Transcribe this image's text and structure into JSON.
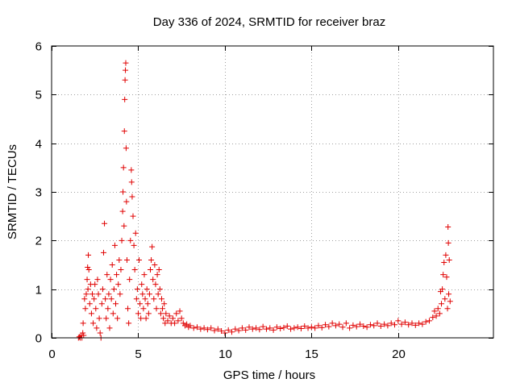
{
  "chart_data": {
    "type": "scatter",
    "title": "Day 336 of 2024, SRMTID for receiver braz",
    "xlabel": "GPS time / hours",
    "ylabel": "SRMTID / TECUs",
    "xlim": [
      0,
      25.5
    ],
    "ylim": [
      0,
      6
    ],
    "xticks": [
      "0",
      "5",
      "10",
      "15",
      "20"
    ],
    "yticks": [
      "0",
      "1",
      "2",
      "3",
      "4",
      "5",
      "6"
    ],
    "grid": true,
    "marker": "+",
    "marker_color": "#e00000",
    "series": [
      {
        "name": "SRMTID",
        "points": [
          [
            1.55,
            0.0
          ],
          [
            1.6,
            0.02
          ],
          [
            1.65,
            0.0
          ],
          [
            1.7,
            0.05
          ],
          [
            1.75,
            0.0
          ],
          [
            1.8,
            0.1
          ],
          [
            1.82,
            0.3
          ],
          [
            1.85,
            0.05
          ],
          [
            1.9,
            0.8
          ],
          [
            1.95,
            0.6
          ],
          [
            2.0,
            0.9
          ],
          [
            2.05,
            1.2
          ],
          [
            2.08,
            1.45
          ],
          [
            2.1,
            1.0
          ],
          [
            2.12,
            1.7
          ],
          [
            2.15,
            1.4
          ],
          [
            2.2,
            0.7
          ],
          [
            2.25,
            1.1
          ],
          [
            2.3,
            0.5
          ],
          [
            2.35,
            0.9
          ],
          [
            2.4,
            0.3
          ],
          [
            2.45,
            0.8
          ],
          [
            2.5,
            1.1
          ],
          [
            2.55,
            0.6
          ],
          [
            2.6,
            0.2
          ],
          [
            2.65,
            1.2
          ],
          [
            2.7,
            0.9
          ],
          [
            2.75,
            0.4
          ],
          [
            2.8,
            0.1
          ],
          [
            2.85,
            0.0
          ],
          [
            2.9,
            0.7
          ],
          [
            2.95,
            1.0
          ],
          [
            3.0,
            1.75
          ],
          [
            3.05,
            2.35
          ],
          [
            3.1,
            0.8
          ],
          [
            3.15,
            0.4
          ],
          [
            3.2,
            1.3
          ],
          [
            3.25,
            0.6
          ],
          [
            3.3,
            0.9
          ],
          [
            3.35,
            0.2
          ],
          [
            3.4,
            1.2
          ],
          [
            3.45,
            0.8
          ],
          [
            3.5,
            1.5
          ],
          [
            3.55,
            0.5
          ],
          [
            3.6,
            1.0
          ],
          [
            3.65,
            1.9
          ],
          [
            3.7,
            0.7
          ],
          [
            3.75,
            1.3
          ],
          [
            3.8,
            0.4
          ],
          [
            3.85,
            1.1
          ],
          [
            3.9,
            1.6
          ],
          [
            3.95,
            0.9
          ],
          [
            4.0,
            1.4
          ],
          [
            4.05,
            2.0
          ],
          [
            4.1,
            2.6
          ],
          [
            4.12,
            3.0
          ],
          [
            4.15,
            3.5
          ],
          [
            4.18,
            2.3
          ],
          [
            4.2,
            4.25
          ],
          [
            4.22,
            4.9
          ],
          [
            4.24,
            5.3
          ],
          [
            4.26,
            5.5
          ],
          [
            4.28,
            5.65
          ],
          [
            4.3,
            3.9
          ],
          [
            4.32,
            2.8
          ],
          [
            4.35,
            1.6
          ],
          [
            4.4,
            0.6
          ],
          [
            4.45,
            0.3
          ],
          [
            4.5,
            1.2
          ],
          [
            4.55,
            2.0
          ],
          [
            4.6,
            3.45
          ],
          [
            4.62,
            3.2
          ],
          [
            4.65,
            2.9
          ],
          [
            4.7,
            2.5
          ],
          [
            4.75,
            1.9
          ],
          [
            4.8,
            1.4
          ],
          [
            4.85,
            2.15
          ],
          [
            4.9,
            0.8
          ],
          [
            4.95,
            1.0
          ],
          [
            5.0,
            0.5
          ],
          [
            5.05,
            1.6
          ],
          [
            5.1,
            0.7
          ],
          [
            5.15,
            0.4
          ],
          [
            5.2,
            1.1
          ],
          [
            5.25,
            0.9
          ],
          [
            5.3,
            0.6
          ],
          [
            5.35,
            1.3
          ],
          [
            5.4,
            0.8
          ],
          [
            5.45,
            0.4
          ],
          [
            5.5,
            1.0
          ],
          [
            5.55,
            0.7
          ],
          [
            5.6,
            0.5
          ],
          [
            5.65,
            0.9
          ],
          [
            5.7,
            1.4
          ],
          [
            5.75,
            1.6
          ],
          [
            5.8,
            1.87
          ],
          [
            5.85,
            1.2
          ],
          [
            5.9,
            0.8
          ],
          [
            5.95,
            1.5
          ],
          [
            6.0,
            1.1
          ],
          [
            6.05,
            0.6
          ],
          [
            6.1,
            1.3
          ],
          [
            6.15,
            0.9
          ],
          [
            6.2,
            1.4
          ],
          [
            6.25,
            1.0
          ],
          [
            6.3,
            0.5
          ],
          [
            6.35,
            0.8
          ],
          [
            6.4,
            0.6
          ],
          [
            6.45,
            0.4
          ],
          [
            6.5,
            0.7
          ],
          [
            6.55,
            0.3
          ],
          [
            6.6,
            0.5
          ],
          [
            6.7,
            0.35
          ],
          [
            6.8,
            0.45
          ],
          [
            6.9,
            0.3
          ],
          [
            7.0,
            0.4
          ],
          [
            7.1,
            0.3
          ],
          [
            7.2,
            0.5
          ],
          [
            7.3,
            0.35
          ],
          [
            7.4,
            0.55
          ],
          [
            7.5,
            0.4
          ],
          [
            7.6,
            0.3
          ],
          [
            7.7,
            0.25
          ],
          [
            7.8,
            0.28
          ],
          [
            7.9,
            0.22
          ],
          [
            8.0,
            0.25
          ],
          [
            8.2,
            0.2
          ],
          [
            8.4,
            0.22
          ],
          [
            8.6,
            0.18
          ],
          [
            8.8,
            0.2
          ],
          [
            9.0,
            0.17
          ],
          [
            9.2,
            0.2
          ],
          [
            9.4,
            0.15
          ],
          [
            9.6,
            0.18
          ],
          [
            9.8,
            0.14
          ],
          [
            10.0,
            0.1
          ],
          [
            10.2,
            0.16
          ],
          [
            10.4,
            0.12
          ],
          [
            10.6,
            0.18
          ],
          [
            10.8,
            0.15
          ],
          [
            11.0,
            0.2
          ],
          [
            11.2,
            0.16
          ],
          [
            11.4,
            0.22
          ],
          [
            11.6,
            0.18
          ],
          [
            11.8,
            0.2
          ],
          [
            12.0,
            0.17
          ],
          [
            12.2,
            0.23
          ],
          [
            12.4,
            0.18
          ],
          [
            12.6,
            0.2
          ],
          [
            12.8,
            0.16
          ],
          [
            13.0,
            0.22
          ],
          [
            13.2,
            0.19
          ],
          [
            13.4,
            0.21
          ],
          [
            13.6,
            0.24
          ],
          [
            13.8,
            0.18
          ],
          [
            14.0,
            0.2
          ],
          [
            14.2,
            0.22
          ],
          [
            14.4,
            0.19
          ],
          [
            14.6,
            0.24
          ],
          [
            14.8,
            0.2
          ],
          [
            15.0,
            0.22
          ],
          [
            15.2,
            0.2
          ],
          [
            15.4,
            0.25
          ],
          [
            15.6,
            0.21
          ],
          [
            15.8,
            0.27
          ],
          [
            16.0,
            0.23
          ],
          [
            16.2,
            0.3
          ],
          [
            16.4,
            0.25
          ],
          [
            16.6,
            0.28
          ],
          [
            16.8,
            0.22
          ],
          [
            17.0,
            0.3
          ],
          [
            17.2,
            0.2
          ],
          [
            17.4,
            0.26
          ],
          [
            17.6,
            0.23
          ],
          [
            17.8,
            0.28
          ],
          [
            18.0,
            0.24
          ],
          [
            18.2,
            0.22
          ],
          [
            18.4,
            0.27
          ],
          [
            18.6,
            0.25
          ],
          [
            18.8,
            0.3
          ],
          [
            19.0,
            0.24
          ],
          [
            19.2,
            0.28
          ],
          [
            19.4,
            0.25
          ],
          [
            19.6,
            0.3
          ],
          [
            19.8,
            0.27
          ],
          [
            20.0,
            0.35
          ],
          [
            20.2,
            0.28
          ],
          [
            20.4,
            0.32
          ],
          [
            20.6,
            0.27
          ],
          [
            20.8,
            0.3
          ],
          [
            21.0,
            0.26
          ],
          [
            21.2,
            0.3
          ],
          [
            21.4,
            0.28
          ],
          [
            21.6,
            0.33
          ],
          [
            21.8,
            0.35
          ],
          [
            22.0,
            0.42
          ],
          [
            22.1,
            0.55
          ],
          [
            22.2,
            0.45
          ],
          [
            22.3,
            0.6
          ],
          [
            22.4,
            0.5
          ],
          [
            22.45,
            0.95
          ],
          [
            22.5,
            0.7
          ],
          [
            22.55,
            1.0
          ],
          [
            22.6,
            1.3
          ],
          [
            22.65,
            1.55
          ],
          [
            22.7,
            0.8
          ],
          [
            22.75,
            1.7
          ],
          [
            22.8,
            1.25
          ],
          [
            22.85,
            0.6
          ],
          [
            22.88,
            2.28
          ],
          [
            22.9,
            1.95
          ],
          [
            22.92,
            0.9
          ],
          [
            22.95,
            1.6
          ],
          [
            23.0,
            0.75
          ]
        ]
      }
    ]
  }
}
